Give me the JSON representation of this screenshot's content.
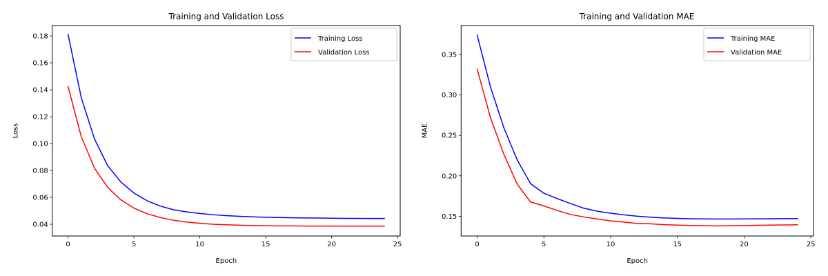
{
  "chart_data": [
    {
      "type": "line",
      "title": "Training and Validation Loss",
      "xlabel": "Epoch",
      "ylabel": "Loss",
      "xlim": [
        -1.2,
        25.2
      ],
      "ylim": [
        0.0313,
        0.1877
      ],
      "xticks": [
        0,
        5,
        10,
        15,
        20,
        25
      ],
      "xtick_labels": [
        "0",
        "5",
        "10",
        "15",
        "20",
        "25"
      ],
      "yticks": [
        0.04,
        0.06,
        0.08,
        0.1,
        0.12,
        0.14,
        0.16,
        0.18
      ],
      "ytick_labels": [
        "0.04",
        "0.06",
        "0.08",
        "0.10",
        "0.12",
        "0.14",
        "0.16",
        "0.18"
      ],
      "grid": false,
      "legend_position": "top-right",
      "x": [
        0,
        1,
        2,
        3,
        4,
        5,
        6,
        7,
        8,
        9,
        10,
        11,
        12,
        13,
        14,
        15,
        16,
        17,
        18,
        19,
        20,
        21,
        22,
        23,
        24
      ],
      "series": [
        {
          "name": "Training Loss",
          "color": "#0000ff",
          "values": [
            0.1812,
            0.1342,
            0.1036,
            0.0836,
            0.0715,
            0.0632,
            0.0575,
            0.0535,
            0.0508,
            0.0492,
            0.048,
            0.0471,
            0.0464,
            0.0459,
            0.0455,
            0.0452,
            0.045,
            0.0448,
            0.0447,
            0.0446,
            0.0445,
            0.0444,
            0.0444,
            0.0443,
            0.0443
          ]
        },
        {
          "name": "Validation Loss",
          "color": "#ff0000",
          "values": [
            0.1424,
            0.1052,
            0.0818,
            0.0675,
            0.0582,
            0.052,
            0.0478,
            0.045,
            0.043,
            0.0416,
            0.0407,
            0.04,
            0.0396,
            0.0393,
            0.0391,
            0.0389,
            0.0388,
            0.0388,
            0.0387,
            0.0387,
            0.0387,
            0.0386,
            0.0386,
            0.0386,
            0.0386
          ]
        }
      ]
    },
    {
      "type": "line",
      "title": "Training and Validation MAE",
      "xlabel": "Epoch",
      "ylabel": "MAE",
      "xlim": [
        -1.2,
        25.2
      ],
      "ylim": [
        0.1256,
        0.3857
      ],
      "xticks": [
        0,
        5,
        10,
        15,
        20,
        25
      ],
      "xtick_labels": [
        "0",
        "5",
        "10",
        "15",
        "20",
        "25"
      ],
      "yticks": [
        0.15,
        0.2,
        0.25,
        0.3,
        0.35
      ],
      "ytick_labels": [
        "0.15",
        "0.20",
        "0.25",
        "0.30",
        "0.35"
      ],
      "grid": false,
      "legend_position": "top-right",
      "x": [
        0,
        1,
        2,
        3,
        4,
        5,
        6,
        7,
        8,
        9,
        10,
        11,
        12,
        13,
        14,
        15,
        16,
        17,
        18,
        19,
        20,
        21,
        22,
        23,
        24
      ],
      "series": [
        {
          "name": "Training MAE",
          "color": "#0000ff",
          "values": [
            0.3739,
            0.3097,
            0.2594,
            0.2196,
            0.1903,
            0.1784,
            0.1718,
            0.1656,
            0.1599,
            0.1562,
            0.1537,
            0.1517,
            0.15,
            0.1488,
            0.1479,
            0.1473,
            0.1469,
            0.1467,
            0.1466,
            0.1466,
            0.1467,
            0.1468,
            0.1469,
            0.147,
            0.1471
          ]
        },
        {
          "name": "Validation MAE",
          "color": "#ff0000",
          "values": [
            0.3318,
            0.2716,
            0.2267,
            0.1897,
            0.1676,
            0.1628,
            0.1571,
            0.1522,
            0.1491,
            0.1466,
            0.1443,
            0.1428,
            0.1411,
            0.1406,
            0.1396,
            0.139,
            0.1386,
            0.1383,
            0.1381,
            0.1383,
            0.1385,
            0.1388,
            0.139,
            0.1392,
            0.1394
          ]
        }
      ]
    }
  ]
}
